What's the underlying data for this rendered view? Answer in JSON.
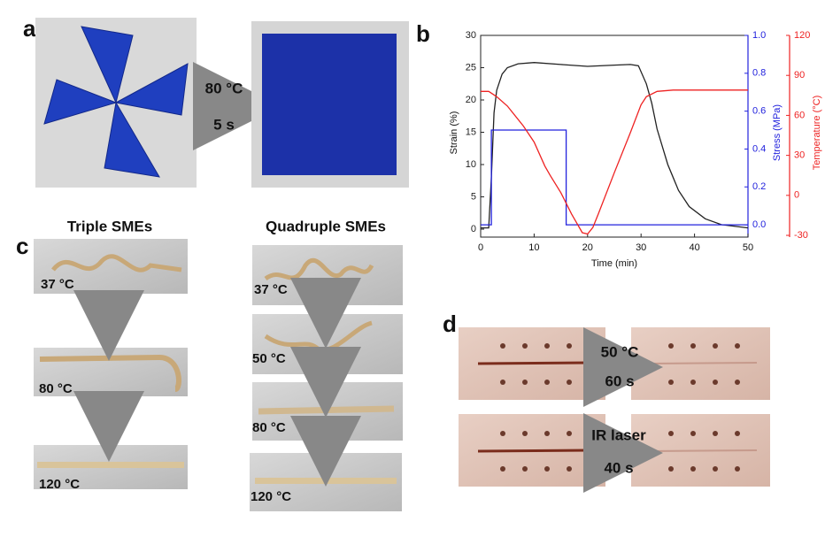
{
  "panels": {
    "a": {
      "label": "a",
      "condition": [
        "80 °C",
        "5 s"
      ]
    },
    "b": {
      "label": "b"
    },
    "c": {
      "label": "c",
      "triple": {
        "title": "Triple SMEs",
        "temps": [
          "37 °C",
          "80 °C",
          "120 °C"
        ]
      },
      "quadruple": {
        "title": "Quadruple SMEs",
        "temps": [
          "37 °C",
          "50 °C",
          "80 °C",
          "120 °C"
        ]
      }
    },
    "d": {
      "label": "d",
      "conditions": [
        [
          "50 °C",
          "60 s"
        ],
        [
          "IR laser",
          "40 s"
        ]
      ]
    }
  },
  "chart_data": {
    "type": "line",
    "xlabel": "Time (min)",
    "ylabel": "Strain (%)",
    "y2label": "Stress (MPa)",
    "y3label": "Temperature (°C)",
    "xlim": [
      0,
      50
    ],
    "xticks": [
      0,
      10,
      20,
      30,
      40,
      50
    ],
    "ylim": [
      -1.23,
      30
    ],
    "yticks": [
      0,
      5,
      10,
      15,
      20,
      25,
      30
    ],
    "y2lim": [
      -0.065,
      1.0
    ],
    "y2ticks": [
      {
        "value": 0,
        "label": "0.0"
      },
      0.2,
      0.4,
      0.6,
      0.8,
      {
        "value": 1,
        "label": "1.0"
      }
    ],
    "y3lim": [
      -31.3,
      120
    ],
    "y3ticks": [
      -30,
      0,
      30,
      60,
      90,
      120
    ],
    "series": [
      {
        "name": "Strain",
        "color": "#222222",
        "axis": "y",
        "x": [
          0,
          1.5,
          2,
          2.5,
          3,
          4,
          5,
          7,
          10,
          15,
          20,
          25,
          28,
          29.5,
          31,
          32,
          33,
          35,
          37,
          39,
          42,
          45,
          50
        ],
        "values": [
          0.2,
          0.2,
          8,
          18,
          21.5,
          24,
          25,
          25.6,
          25.8,
          25.5,
          25.2,
          25.4,
          25.5,
          25.3,
          22.5,
          19.5,
          15.5,
          10,
          6,
          3.5,
          1.6,
          0.7,
          0.2
        ]
      },
      {
        "name": "Stress",
        "color": "#2222dd",
        "axis": "y2",
        "x": [
          0,
          2,
          2,
          16,
          16,
          50
        ],
        "values": [
          0,
          0,
          0.5,
          0.5,
          0,
          0
        ]
      },
      {
        "name": "Temperature",
        "color": "#ee2222",
        "axis": "y3",
        "x": [
          0,
          1.5,
          3,
          5,
          8,
          10,
          12,
          13,
          15,
          17,
          19,
          20,
          21,
          22,
          25,
          28,
          30,
          31,
          33,
          36,
          40,
          50
        ],
        "values": [
          78,
          78,
          74,
          67,
          52,
          40,
          22,
          15,
          2,
          -14,
          -28,
          -29,
          -24,
          -14,
          17,
          47,
          68,
          74,
          78,
          79,
          79,
          79
        ]
      }
    ]
  }
}
